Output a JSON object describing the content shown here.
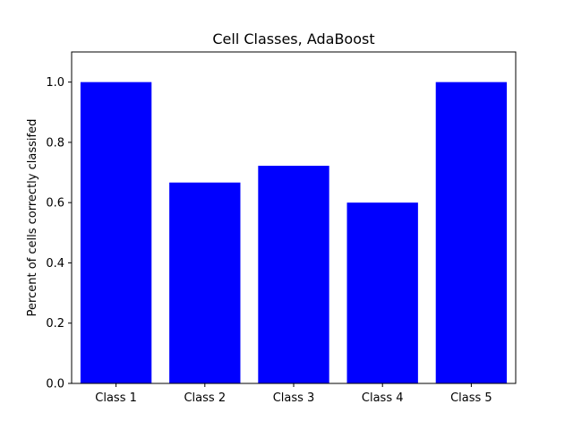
{
  "chart_data": {
    "type": "bar",
    "title": "Cell Classes, AdaBoost",
    "xlabel": "",
    "ylabel": "Percent of cells correctly classifed",
    "categories": [
      "Class 1",
      "Class 2",
      "Class 3",
      "Class 4",
      "Class 5"
    ],
    "values": [
      1.0,
      0.6667,
      0.7222,
      0.6,
      1.0
    ],
    "ylim": [
      0,
      1.1
    ],
    "yticks": [
      "0.0",
      "0.2",
      "0.4",
      "0.6",
      "0.8",
      "1.0"
    ],
    "bar_color": "#0000ff",
    "grid": false,
    "legend": "none"
  }
}
